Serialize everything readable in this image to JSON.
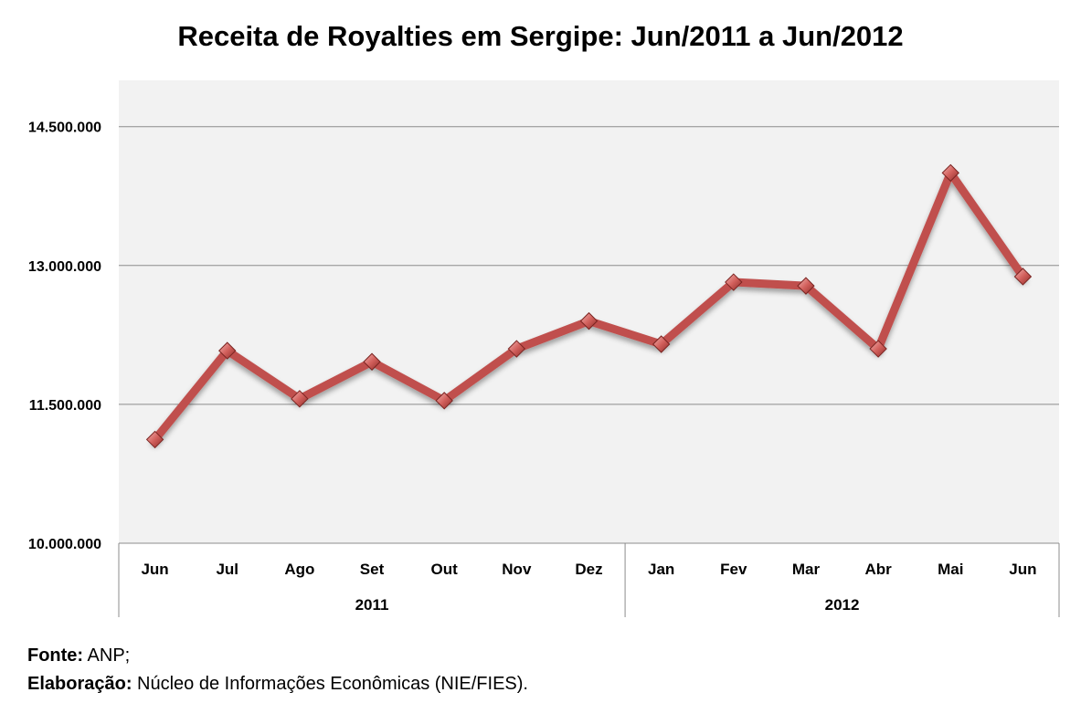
{
  "chart_data": {
    "type": "line",
    "title": "Receita de Royalties em Sergipe: Jun/2011 a Jun/2012",
    "categories": [
      "Jun",
      "Jul",
      "Ago",
      "Set",
      "Out",
      "Nov",
      "Dez",
      "Jan",
      "Fev",
      "Mar",
      "Abr",
      "Mai",
      "Jun"
    ],
    "groups": [
      {
        "label": "2011",
        "count": 7
      },
      {
        "label": "2012",
        "count": 6
      }
    ],
    "series": [
      {
        "name": "Receita de Royalties",
        "color": "#c0504d",
        "values": [
          11120000,
          12080000,
          11560000,
          11960000,
          11540000,
          12100000,
          12400000,
          12150000,
          12820000,
          12780000,
          12100000,
          14000000,
          12880000
        ]
      }
    ],
    "ylim": [
      10000000,
      15000000
    ],
    "yticks": [
      10000000,
      11500000,
      13000000,
      14500000
    ],
    "ytick_labels": [
      "10.000.000",
      "11.500.000",
      "13.000.000",
      "14.500.000"
    ],
    "grid": true,
    "xlabel": "",
    "ylabel": ""
  },
  "footer": {
    "source_label": "Fonte:",
    "source_value": " ANP;",
    "credit_label": "Elaboração:",
    "credit_value": " Núcleo de Informações Econômicas (NIE/FIES)."
  }
}
